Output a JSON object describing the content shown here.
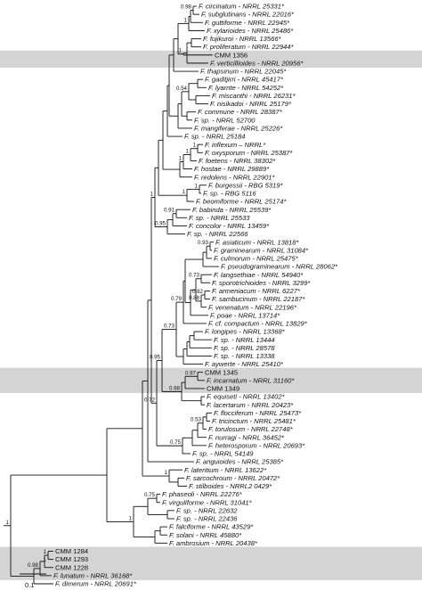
{
  "taxa": [
    {
      "t": "F. circinatum - NRRL 25331*",
      "i": true
    },
    {
      "t": "F. subglutinans - NRRL 22016*",
      "i": true
    },
    {
      "t": "F. guttiforme - NRRL 22945*",
      "i": true
    },
    {
      "t": "F. xylarioides - NRRL 25486*",
      "i": true
    },
    {
      "t": "F. fujikuroi - NRRL 13566*",
      "i": true
    },
    {
      "t": "F. proliferatum - NRRL 22944*",
      "i": true
    },
    {
      "t": "CMM 1356",
      "i": false
    },
    {
      "t": "F. verticillioides - NRRL 20956*",
      "i": true
    },
    {
      "t": "F. thapsinum - NRRL 22045*",
      "i": true
    },
    {
      "t": "F. gaditjirri - NRRL 45417*",
      "i": true
    },
    {
      "t": "F. lyarnte - NRRL 54252*",
      "i": true
    },
    {
      "t": "F. miscanthi - NRRL 26231*",
      "i": true
    },
    {
      "t": "F. nisikadoi - NRRL 25179*",
      "i": true
    },
    {
      "t": "F. commune - NRRL 28387*",
      "i": true
    },
    {
      "t": "F. sp. - NRRL 52700",
      "i": true
    },
    {
      "t": "F. mangiferae - NRRL 25226*",
      "i": true
    },
    {
      "t": "F. sp. - NRRL 25184",
      "i": true
    },
    {
      "t": "F. inflexum – NRRL*",
      "i": true
    },
    {
      "t": "F. oxysporum - NRRL 25387*",
      "i": true
    },
    {
      "t": "F. foetens - NRRL 38302*",
      "i": true
    },
    {
      "t": "F. hostae - NRRL 29889*",
      "i": true
    },
    {
      "t": "F. redolens - NRRL 22901*",
      "i": true
    },
    {
      "t": "F. burgessii - RBG 5319*",
      "i": true
    },
    {
      "t": "F. sp. - RBG 5116",
      "i": true
    },
    {
      "t": "F. beomiforme - NRRL 25174*",
      "i": true
    },
    {
      "t": "F. babinda - NRRL 25539*",
      "i": true
    },
    {
      "t": "F. sp. - NRRL 25533",
      "i": true
    },
    {
      "t": "F. concolor - NRRL 13459*",
      "i": true
    },
    {
      "t": "F. sp. - NRRL 22566",
      "i": true
    },
    {
      "t": "F. asiaticum - NRRL 13818*",
      "i": true
    },
    {
      "t": "F. graminearum - NRRL 31084*",
      "i": true
    },
    {
      "t": "F. culmorum - NRRL 25475*",
      "i": true
    },
    {
      "t": "F. pseudograminearum - NRRL 28062*",
      "i": true
    },
    {
      "t": "F. langsethiae - NRRL 54940*",
      "i": true
    },
    {
      "t": "F. sporotrichioides - NRRL 3299*",
      "i": true
    },
    {
      "t": "F. armeniacum - NRRL 6227*",
      "i": true
    },
    {
      "t": "F. sambucinum - NRRL 22187*",
      "i": true
    },
    {
      "t": "F. venenatum - NRRL 22196*",
      "i": true
    },
    {
      "t": "F. poae - NRRL 13714*",
      "i": true
    },
    {
      "t": "F. cf. compactum - NRRL 13829*",
      "i": true
    },
    {
      "t": "F. longipes - NRRL 13368*",
      "i": true
    },
    {
      "t": "F. sp. - NRRL 13444",
      "i": true
    },
    {
      "t": "F. sp. - NRRL 28578",
      "i": true
    },
    {
      "t": "F. sp. - NRRL 13338",
      "i": true
    },
    {
      "t": "F. aywerte - NRRL 25410*",
      "i": true
    },
    {
      "t": "CMM 1345",
      "i": false
    },
    {
      "t": "F. incarnatum - NRRL 31160*",
      "i": true
    },
    {
      "t": "CMM 1349",
      "i": false
    },
    {
      "t": "F. equiseti - NRRL 13402*",
      "i": true
    },
    {
      "t": "F. lacertarum - NRRL 20423*",
      "i": true
    },
    {
      "t": "F. flocciferum - NRRL 25473*",
      "i": true
    },
    {
      "t": "F. tricinctum - NRRL 25481*",
      "i": true
    },
    {
      "t": "F. torulosum - NRRL 22748*",
      "i": true
    },
    {
      "t": "F. nurragi - NRRL 36452*",
      "i": true
    },
    {
      "t": "F. heterosporum - NRRL 20693*",
      "i": true
    },
    {
      "t": "F. sp. - NRRL 54149",
      "i": true
    },
    {
      "t": "F. anguioides - NRRL 25385*",
      "i": true
    },
    {
      "t": "F. lateritium - NRRL 13622*",
      "i": true
    },
    {
      "t": "F. sarcochroum - NRRL 20472*",
      "i": true
    },
    {
      "t": "F. stilboides - NRRL2 0429*",
      "i": true
    },
    {
      "t": "F. phaseoli - NRRL 22276*",
      "i": true
    },
    {
      "t": "F. virguliforme - NRRL 31041*",
      "i": true
    },
    {
      "t": "F. sp. - NRRL 22632",
      "i": true
    },
    {
      "t": "F. sp. - NRRL 22436",
      "i": true
    },
    {
      "t": "F. falciforme - NRRL 43529*",
      "i": true
    },
    {
      "t": "F. solani - NRRL 45880*",
      "i": true
    },
    {
      "t": "F. ambrosium - NRRL 20438*",
      "i": true
    },
    {
      "t": "CMM 1284",
      "i": false
    },
    {
      "t": "CMM 1293",
      "i": false
    },
    {
      "t": "CMM 1228",
      "i": false
    },
    {
      "t": "F. lunatum - NRRL 36168*",
      "i": true
    },
    {
      "t": "F. dimerum - NRRL 20691*",
      "i": true
    }
  ],
  "supports": [
    "0.98",
    "1",
    "1",
    "0.54",
    "1",
    "1",
    "1",
    "1",
    "1",
    "1",
    "0.91",
    "0.95",
    "0.72",
    "0.93",
    "0.73",
    "0.82",
    "0.88",
    "0.79",
    "0.73",
    "0.97",
    "0.98",
    "0.95",
    "0.75",
    "1",
    "0.53",
    "1",
    "0.75",
    "1",
    "1",
    "0.98",
    "1"
  ],
  "scale_label": "0.1",
  "highlight_color": "#d4d4d4"
}
